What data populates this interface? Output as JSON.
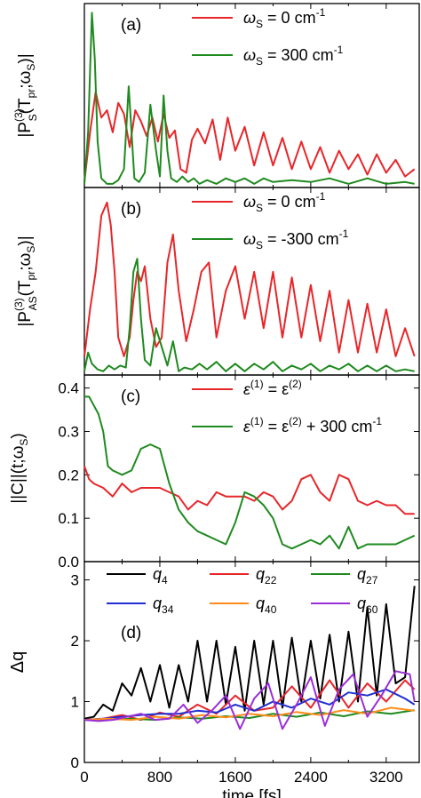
{
  "chart_data": [
    {
      "type": "line",
      "panel": "(a)",
      "ylabel_main": "|P",
      "ylabel_sup": "(3)",
      "ylabel_sub": "S",
      "ylabel_tail": "(T",
      "ylabel_sub2": "pr",
      "ylabel_mid": ";ω",
      "ylabel_sub3": "S",
      "ylabel_end": ")|",
      "xlim": [
        0,
        3550
      ],
      "ylim": [
        0,
        1.0
      ],
      "series": [
        {
          "name": "ωS = 0 cm-1",
          "legend": {
            "prefix": "ω",
            "sub": "S",
            "rest": " = 0 cm",
            "sup": "-1"
          },
          "color": "#e8262a",
          "x": [
            0,
            60,
            120,
            180,
            240,
            300,
            360,
            420,
            480,
            540,
            600,
            660,
            720,
            780,
            840,
            900,
            960,
            1020,
            1080,
            1140,
            1200,
            1280,
            1360,
            1440,
            1520,
            1600,
            1700,
            1800,
            1900,
            2000,
            2100,
            2200,
            2300,
            2400,
            2500,
            2600,
            2700,
            2800,
            2900,
            3000,
            3100,
            3200,
            3300,
            3400,
            3500
          ],
          "values": [
            0.03,
            0.3,
            0.52,
            0.38,
            0.42,
            0.3,
            0.46,
            0.4,
            0.22,
            0.42,
            0.36,
            0.28,
            0.38,
            0.25,
            0.4,
            0.27,
            0.31,
            0.1,
            0.08,
            0.26,
            0.32,
            0.24,
            0.37,
            0.15,
            0.38,
            0.2,
            0.33,
            0.12,
            0.3,
            0.12,
            0.27,
            0.1,
            0.25,
            0.1,
            0.22,
            0.08,
            0.2,
            0.1,
            0.18,
            0.07,
            0.18,
            0.08,
            0.15,
            0.06,
            0.1
          ]
        },
        {
          "name": "ωS = 300 cm-1",
          "legend": {
            "prefix": "ω",
            "sub": "S",
            "rest": " = 300 cm",
            "sup": "-1"
          },
          "color": "#1f8a1f",
          "x": [
            0,
            40,
            80,
            110,
            140,
            180,
            240,
            300,
            360,
            420,
            470,
            500,
            530,
            580,
            640,
            700,
            760,
            800,
            840,
            880,
            920,
            980,
            1040,
            1100,
            1160,
            1220,
            1300,
            1400,
            1500,
            1600,
            1700,
            1800,
            1900,
            2000,
            2200,
            2400,
            2600,
            2800,
            3000,
            3200,
            3400,
            3500
          ],
          "values": [
            0.02,
            0.3,
            0.95,
            0.7,
            0.25,
            0.05,
            0.02,
            0.02,
            0.04,
            0.1,
            0.55,
            0.3,
            0.05,
            0.03,
            0.08,
            0.45,
            0.2,
            0.06,
            0.5,
            0.2,
            0.05,
            0.03,
            0.06,
            0.03,
            0.05,
            0.02,
            0.04,
            0.02,
            0.05,
            0.03,
            0.05,
            0.02,
            0.05,
            0.03,
            0.04,
            0.03,
            0.05,
            0.02,
            0.05,
            0.02,
            0.03,
            0.02
          ]
        }
      ]
    },
    {
      "type": "line",
      "panel": "(b)",
      "ylabel_main": "|P",
      "ylabel_sup": "(3)",
      "ylabel_sub": "AS",
      "ylabel_tail": "(T",
      "ylabel_sub2": "pr",
      "ylabel_mid": ";ω",
      "ylabel_sub3": "S",
      "ylabel_end": ")|",
      "xlim": [
        0,
        3550
      ],
      "ylim": [
        0,
        1.0
      ],
      "series": [
        {
          "name": "ωS = 0 cm-1",
          "legend": {
            "prefix": "ω",
            "sub": "S",
            "rest": " = 0 cm",
            "sup": "-1"
          },
          "color": "#e8262a",
          "x": [
            0,
            60,
            120,
            180,
            240,
            280,
            320,
            360,
            420,
            480,
            520,
            560,
            600,
            640,
            700,
            760,
            820,
            880,
            940,
            1000,
            1080,
            1160,
            1240,
            1320,
            1400,
            1500,
            1600,
            1700,
            1800,
            1900,
            2000,
            2100,
            2200,
            2300,
            2400,
            2500,
            2600,
            2700,
            2800,
            2900,
            3000,
            3100,
            3200,
            3300,
            3400,
            3500
          ],
          "values": [
            0.1,
            0.35,
            0.55,
            0.85,
            0.92,
            0.8,
            0.55,
            0.2,
            0.1,
            0.2,
            0.4,
            0.55,
            0.5,
            0.58,
            0.3,
            0.15,
            0.2,
            0.6,
            0.75,
            0.45,
            0.18,
            0.35,
            0.55,
            0.6,
            0.2,
            0.45,
            0.58,
            0.3,
            0.55,
            0.25,
            0.55,
            0.2,
            0.52,
            0.2,
            0.48,
            0.18,
            0.45,
            0.12,
            0.4,
            0.12,
            0.38,
            0.12,
            0.35,
            0.1,
            0.25,
            0.1
          ]
        },
        {
          "name": "ωS = -300 cm-1",
          "legend": {
            "prefix": "ω",
            "sub": "S",
            "rest": " = -300 cm",
            "sup": "-1"
          },
          "color": "#1f8a1f",
          "x": [
            0,
            40,
            80,
            140,
            200,
            260,
            320,
            380,
            440,
            480,
            520,
            560,
            600,
            640,
            700,
            760,
            820,
            880,
            940,
            1000,
            1060,
            1140,
            1220,
            1300,
            1400,
            1500,
            1600,
            1700,
            1800,
            1900,
            2000,
            2100,
            2200,
            2300,
            2400,
            2500,
            2600,
            2700,
            2800,
            2900,
            3000,
            3100,
            3200,
            3300,
            3400,
            3500
          ],
          "values": [
            0.02,
            0.12,
            0.06,
            0.03,
            0.02,
            0.05,
            0.03,
            0.05,
            0.04,
            0.25,
            0.55,
            0.62,
            0.3,
            0.08,
            0.05,
            0.25,
            0.15,
            0.05,
            0.18,
            0.02,
            0.04,
            0.03,
            0.06,
            0.03,
            0.07,
            0.02,
            0.06,
            0.02,
            0.06,
            0.03,
            0.07,
            0.02,
            0.05,
            0.03,
            0.06,
            0.02,
            0.05,
            0.03,
            0.06,
            0.02,
            0.05,
            0.02,
            0.05,
            0.02,
            0.03,
            0.02
          ]
        }
      ]
    },
    {
      "type": "line",
      "panel": "(c)",
      "ylabel_main": "||C||(t;ω",
      "ylabel_sub": "S",
      "ylabel_end": ")",
      "xlim": [
        0,
        3550
      ],
      "ylim": [
        0.0,
        0.43
      ],
      "yticks": [
        "0.0",
        "0.1",
        "0.2",
        "0.3",
        "0.4"
      ],
      "yticks_values": [
        0.0,
        0.1,
        0.2,
        0.3,
        0.4
      ],
      "series": [
        {
          "name": "ε(1) = ε(2)",
          "legend": {
            "prefix": "ε",
            "sup": "(1)",
            "rest": " = ε",
            "sup2": "(2)",
            "tail": ""
          },
          "color": "#e8262a",
          "x": [
            0,
            50,
            100,
            200,
            300,
            400,
            500,
            600,
            700,
            800,
            900,
            1000,
            1100,
            1200,
            1300,
            1400,
            1500,
            1600,
            1700,
            1800,
            1900,
            2000,
            2100,
            2200,
            2300,
            2400,
            2500,
            2600,
            2700,
            2800,
            2900,
            3000,
            3100,
            3200,
            3300,
            3400,
            3500
          ],
          "values": [
            0.22,
            0.19,
            0.18,
            0.17,
            0.15,
            0.18,
            0.16,
            0.17,
            0.17,
            0.17,
            0.16,
            0.15,
            0.12,
            0.14,
            0.13,
            0.16,
            0.15,
            0.15,
            0.15,
            0.14,
            0.16,
            0.15,
            0.12,
            0.14,
            0.19,
            0.2,
            0.16,
            0.14,
            0.2,
            0.19,
            0.14,
            0.13,
            0.14,
            0.13,
            0.13,
            0.11,
            0.11
          ]
        },
        {
          "name": "ε(1) = ε(2) + 300 cm-1",
          "legend": {
            "prefix": "ε",
            "sup": "(1)",
            "rest": " = ε",
            "sup2": "(2)",
            "tail": " + 300 cm",
            "sup3": "-1"
          },
          "color": "#1f8a1f",
          "x": [
            0,
            50,
            100,
            150,
            200,
            250,
            300,
            400,
            500,
            600,
            700,
            800,
            850,
            900,
            1000,
            1100,
            1200,
            1300,
            1400,
            1500,
            1600,
            1700,
            1800,
            1900,
            2000,
            2100,
            2200,
            2300,
            2400,
            2500,
            2600,
            2700,
            2800,
            2900,
            3000,
            3100,
            3200,
            3300,
            3400,
            3500
          ],
          "values": [
            0.38,
            0.38,
            0.36,
            0.34,
            0.3,
            0.22,
            0.21,
            0.2,
            0.21,
            0.26,
            0.27,
            0.26,
            0.22,
            0.18,
            0.12,
            0.09,
            0.07,
            0.06,
            0.05,
            0.04,
            0.09,
            0.16,
            0.15,
            0.13,
            0.1,
            0.04,
            0.03,
            0.04,
            0.05,
            0.04,
            0.06,
            0.03,
            0.08,
            0.03,
            0.04,
            0.04,
            0.04,
            0.04,
            0.05,
            0.06
          ]
        }
      ]
    },
    {
      "type": "line",
      "panel": "(d)",
      "ylabel": "Δq",
      "xlabel": "time [fs]",
      "xlim": [
        0,
        3550
      ],
      "ylim": [
        0,
        3.3
      ],
      "yticks": [
        "0",
        "1",
        "2",
        "3"
      ],
      "yticks_values": [
        0,
        1,
        2,
        3
      ],
      "xticks": [
        "0",
        "800",
        "1600",
        "2400",
        "3200"
      ],
      "xticks_values": [
        0,
        800,
        1600,
        2400,
        3200
      ],
      "series": [
        {
          "name": "q4",
          "legend": {
            "prefix": "q",
            "sub": "4"
          },
          "color": "#000000",
          "x": [
            0,
            100,
            200,
            300,
            400,
            500,
            600,
            700,
            800,
            900,
            1000,
            1100,
            1200,
            1300,
            1400,
            1500,
            1600,
            1700,
            1800,
            1900,
            2000,
            2100,
            2200,
            2300,
            2400,
            2500,
            2600,
            2700,
            2800,
            2900,
            3000,
            3100,
            3200,
            3300,
            3400,
            3500
          ],
          "values": [
            0.72,
            0.75,
            0.95,
            0.85,
            1.3,
            1.1,
            1.55,
            1.0,
            1.6,
            0.9,
            1.6,
            1.0,
            2.0,
            1.0,
            2.0,
            0.95,
            1.9,
            0.85,
            2.0,
            0.95,
            2.0,
            0.9,
            2.05,
            1.0,
            2.0,
            1.05,
            2.1,
            1.0,
            2.15,
            1.0,
            2.55,
            1.1,
            2.6,
            1.3,
            1.4,
            2.9
          ]
        },
        {
          "name": "q22",
          "legend": {
            "prefix": "q",
            "sub": "22"
          },
          "color": "#e8262a",
          "x": [
            0,
            200,
            400,
            600,
            800,
            1000,
            1200,
            1400,
            1600,
            1800,
            2000,
            2200,
            2400,
            2600,
            2800,
            3000,
            3200,
            3400,
            3500
          ],
          "values": [
            0.7,
            0.72,
            0.78,
            0.7,
            0.82,
            0.75,
            0.95,
            0.8,
            1.1,
            0.85,
            0.9,
            1.25,
            0.9,
            1.35,
            0.9,
            1.3,
            1.0,
            1.35,
            1.2
          ]
        },
        {
          "name": "q27",
          "legend": {
            "prefix": "q",
            "sub": "27"
          },
          "color": "#1f8a1f",
          "x": [
            0,
            250,
            500,
            750,
            1000,
            1250,
            1500,
            1750,
            2000,
            2250,
            2500,
            2750,
            3000,
            3250,
            3500
          ],
          "values": [
            0.7,
            0.7,
            0.72,
            0.7,
            0.74,
            0.72,
            0.76,
            0.73,
            0.8,
            0.75,
            0.82,
            0.76,
            0.84,
            0.8,
            0.86
          ]
        },
        {
          "name": "q34",
          "legend": {
            "prefix": "q",
            "sub": "34"
          },
          "color": "#1f2fd1",
          "x": [
            0,
            200,
            400,
            600,
            800,
            1000,
            1200,
            1400,
            1600,
            1800,
            2000,
            2200,
            2400,
            2600,
            2800,
            3000,
            3200,
            3400,
            3500
          ],
          "values": [
            0.7,
            0.72,
            0.75,
            0.78,
            0.8,
            0.8,
            0.85,
            0.82,
            0.95,
            0.85,
            1.0,
            0.9,
            1.05,
            0.95,
            1.15,
            1.1,
            1.2,
            1.05,
            0.95
          ]
        },
        {
          "name": "q40",
          "legend": {
            "prefix": "q",
            "sub": "40"
          },
          "color": "#ff8c1a",
          "x": [
            0,
            250,
            500,
            750,
            1000,
            1250,
            1500,
            1750,
            2000,
            2250,
            2500,
            2750,
            3000,
            3250,
            3500
          ],
          "values": [
            0.7,
            0.72,
            0.7,
            0.75,
            0.72,
            0.78,
            0.74,
            0.8,
            0.76,
            0.83,
            0.78,
            0.86,
            0.8,
            0.9,
            0.85
          ]
        },
        {
          "name": "q60",
          "legend": {
            "prefix": "q",
            "sub": "60"
          },
          "color": "#9a2fd8",
          "x": [
            0,
            150,
            300,
            450,
            600,
            750,
            900,
            1050,
            1200,
            1350,
            1500,
            1650,
            1800,
            1950,
            2100,
            2250,
            2400,
            2550,
            2700,
            2850,
            3000,
            3150,
            3300,
            3450,
            3500
          ],
          "values": [
            0.7,
            0.68,
            0.7,
            0.75,
            0.8,
            0.7,
            0.72,
            0.95,
            0.65,
            0.85,
            1.1,
            0.55,
            1.05,
            1.3,
            0.55,
            0.95,
            1.4,
            0.6,
            1.2,
            1.45,
            0.75,
            1.1,
            1.5,
            1.45,
            1.0
          ]
        }
      ]
    }
  ]
}
